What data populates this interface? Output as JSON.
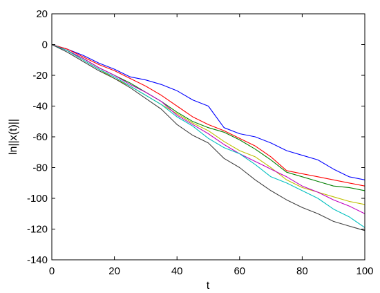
{
  "chart_data": {
    "type": "line",
    "title": "",
    "xlabel": "t",
    "ylabel": "ln||x(t)||",
    "xlim": [
      0,
      100
    ],
    "ylim": [
      -140,
      20
    ],
    "xticks": [
      0,
      20,
      40,
      60,
      80,
      100
    ],
    "yticks": [
      20,
      0,
      -20,
      -40,
      -60,
      -80,
      -100,
      -120,
      -140
    ],
    "xtick_labels": [
      "0",
      "20",
      "40",
      "60",
      "80",
      "100"
    ],
    "ytick_labels": [
      "20",
      "0",
      "-20",
      "-40",
      "-60",
      "-80",
      "-100",
      "-120",
      "-140"
    ],
    "grid": false,
    "legend": "none",
    "x": [
      0,
      5,
      10,
      15,
      20,
      25,
      30,
      35,
      40,
      45,
      50,
      55,
      60,
      65,
      70,
      75,
      80,
      85,
      90,
      95,
      100
    ],
    "series": [
      {
        "color": "#0000ff",
        "values": [
          0,
          -3,
          -7,
          -12,
          -16,
          -21,
          -23,
          -26,
          -30,
          -36,
          -40,
          -54,
          -58,
          -60,
          -64,
          -69,
          -72,
          -75,
          -81,
          -86,
          -88
        ]
      },
      {
        "color": "#ff0000",
        "values": [
          0,
          -3,
          -8,
          -13,
          -17,
          -22,
          -27,
          -33,
          -40,
          -47,
          -52,
          -56,
          -61,
          -66,
          -73,
          -82,
          -84,
          -86,
          -88,
          -90,
          -92
        ]
      },
      {
        "color": "#007f00",
        "values": [
          0,
          -4,
          -9,
          -15,
          -20,
          -25,
          -31,
          -37,
          -44,
          -50,
          -54,
          -57,
          -62,
          -68,
          -75,
          -83,
          -86,
          -89,
          -92,
          -93,
          -95
        ]
      },
      {
        "color": "#bfbf00",
        "values": [
          0,
          -4,
          -10,
          -16,
          -22,
          -27,
          -33,
          -39,
          -45,
          -51,
          -56,
          -63,
          -69,
          -73,
          -80,
          -88,
          -93,
          -96,
          -99,
          -102,
          -104
        ]
      },
      {
        "color": "#bf00bf",
        "values": [
          0,
          -4,
          -9,
          -15,
          -20,
          -26,
          -31,
          -37,
          -46,
          -52,
          -58,
          -65,
          -71,
          -76,
          -81,
          -86,
          -92,
          -96,
          -101,
          -105,
          -110
        ]
      },
      {
        "color": "#00bfbf",
        "values": [
          0,
          -4,
          -10,
          -16,
          -21,
          -27,
          -33,
          -39,
          -47,
          -53,
          -61,
          -67,
          -71,
          -78,
          -86,
          -90,
          -95,
          -100,
          -107,
          -112,
          -119
        ]
      },
      {
        "color": "#404040",
        "values": [
          0,
          -5,
          -11,
          -17,
          -22,
          -28,
          -35,
          -42,
          -52,
          -59,
          -64,
          -74,
          -80,
          -88,
          -95,
          -101,
          -106,
          -110,
          -115,
          -118,
          -121
        ]
      }
    ]
  }
}
